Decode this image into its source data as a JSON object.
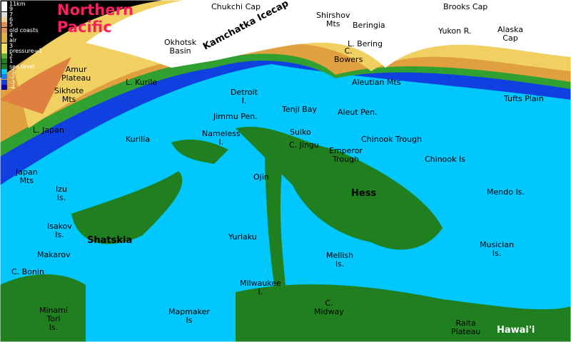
{
  "title": "Northern Pacific",
  "legend": [
    "11km",
    "9",
    "7",
    "6",
    "5",
    "old coasts",
    "4",
    "air",
    "3",
    "pressure=1",
    "2",
    "1",
    "sea level",
    "-1",
    "-2",
    "-3",
    "-4"
  ],
  "labels": [
    "Chukchi Cap",
    "Shirshov\nMts",
    "Beringia",
    "Brooks Cap",
    "Yukon R.",
    "Alaska\nCap",
    "Okhotsk\nBasin",
    "Kamchatka Icecap",
    "L. Bering",
    "C.\nBowers",
    "Amur\nPlateau",
    "L. Kurile",
    "Aleutian Mts",
    "Sikhote\nMts",
    "Detroit\nI.",
    "Tenji Bay",
    "Aleut Pen.",
    "Tufts Plain",
    "Jimmu Pen.",
    "L. Japan",
    "Kurilia",
    "Nameless\nI.",
    "Suiko",
    "C. Jingu",
    "Chinook Trough",
    "Emperor\nTrough",
    "Chinook Is",
    "Japan\nMts",
    "Ojin",
    "Izu\nIs.",
    "Hess",
    "Mendo Is.",
    "Isakov\nIs.",
    "Shatskia",
    "Yuriaku",
    "Musician\nIs.",
    "Makarov",
    "Mellish\nIs.",
    "C. Bonin",
    "Milwaukee\nI.",
    "C.\nMidway",
    "Minami\nTori\nIs.",
    "Mapmaker\nIs",
    "Raita\nPlateau",
    "Hawai'i"
  ]
}
